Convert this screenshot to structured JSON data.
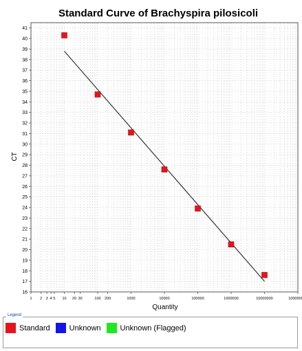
{
  "chart_data": {
    "type": "scatter",
    "title": "Standard Curve of Brachyspira pilosicoli",
    "xlabel": "Quantity",
    "ylabel": "CT",
    "xscale": "log",
    "xlim": [
      1,
      100000000
    ],
    "ylim": [
      16,
      41.5
    ],
    "grid": true,
    "x_tick_labels": [
      {
        "value": 1,
        "label": "1"
      },
      {
        "value": 2,
        "label": "2"
      },
      {
        "value": 3,
        "label": "3"
      },
      {
        "value": 4,
        "label": "4"
      },
      {
        "value": 5,
        "label": "5"
      },
      {
        "value": 10,
        "label": "10"
      },
      {
        "value": 20,
        "label": "20"
      },
      {
        "value": 30,
        "label": "30"
      },
      {
        "value": 100,
        "label": "100"
      },
      {
        "value": 200,
        "label": "200"
      },
      {
        "value": 1000,
        "label": "1000"
      },
      {
        "value": 10000,
        "label": "10000"
      },
      {
        "value": 100000,
        "label": "100000"
      },
      {
        "value": 1000000,
        "label": "1000000"
      },
      {
        "value": 10000000,
        "label": "10000000"
      },
      {
        "value": 100000000,
        "label": "100000000"
      }
    ],
    "y_ticks": [
      16,
      17,
      18,
      19,
      20,
      21,
      22,
      23,
      24,
      25,
      26,
      27,
      28,
      29,
      30,
      31,
      32,
      33,
      34,
      35,
      36,
      37,
      38,
      39,
      40,
      41
    ],
    "series": [
      {
        "name": "Standard",
        "color": "#e8141c",
        "x": [
          10,
          100,
          1000,
          10000,
          100000,
          1000000,
          10000000
        ],
        "y": [
          40.3,
          34.7,
          31.1,
          27.6,
          23.9,
          20.5,
          17.6
        ]
      }
    ],
    "fit_line": {
      "color": "#333333",
      "x": [
        10,
        10000000
      ],
      "y": [
        38.8,
        17.0
      ]
    }
  },
  "legend": {
    "title": "Legend",
    "items": [
      {
        "label": "Standard",
        "color": "#e8141c"
      },
      {
        "label": "Unknown",
        "color": "#1414e8"
      },
      {
        "label": "Unknown (Flagged)",
        "color": "#1ee81e"
      }
    ]
  }
}
